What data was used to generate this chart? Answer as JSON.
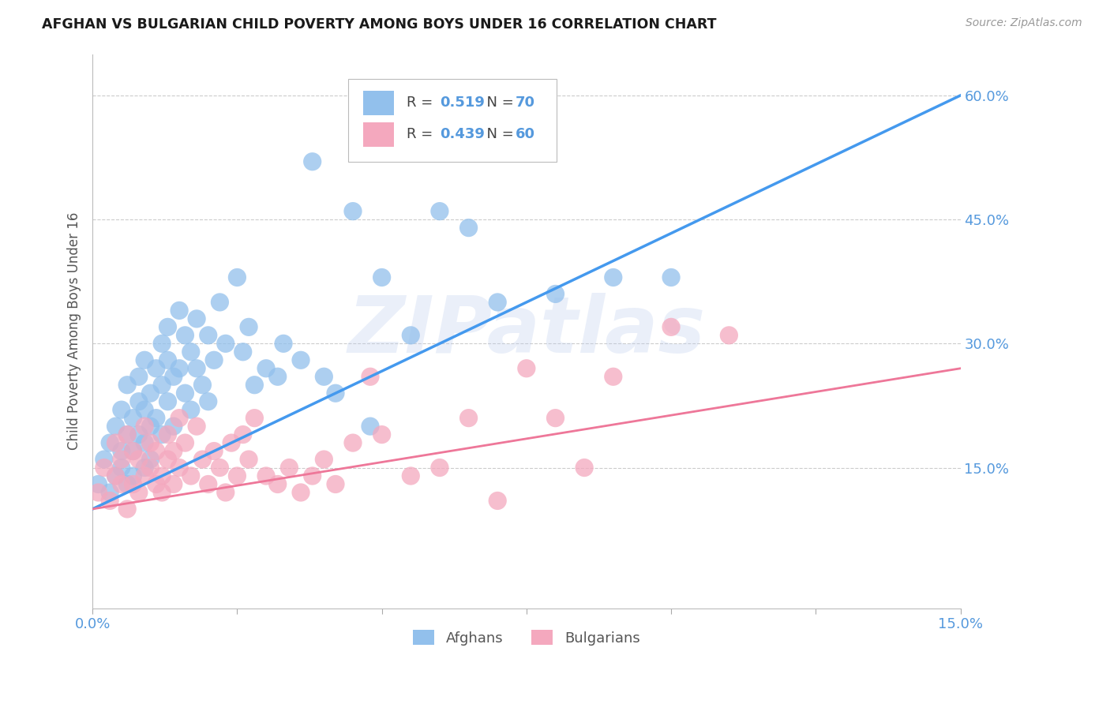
{
  "title": "AFGHAN VS BULGARIAN CHILD POVERTY AMONG BOYS UNDER 16 CORRELATION CHART",
  "source": "Source: ZipAtlas.com",
  "ylabel": "Child Poverty Among Boys Under 16",
  "xlim": [
    0.0,
    0.15
  ],
  "ylim": [
    -0.02,
    0.65
  ],
  "ytick_labels_right": [
    "60.0%",
    "45.0%",
    "30.0%",
    "15.0%"
  ],
  "ytick_vals_right": [
    0.6,
    0.45,
    0.3,
    0.15
  ],
  "afghan_R": "0.519",
  "afghan_N": "70",
  "bulgarian_R": "0.439",
  "bulgarian_N": "60",
  "afghan_color": "#92C0EC",
  "bulgarian_color": "#F4A8BE",
  "afghan_line_color": "#4499EE",
  "bulgarian_line_color": "#EE7799",
  "text_color": "#5599DD",
  "background_color": "#FFFFFF",
  "watermark": "ZIPatlas",
  "afghan_line_x0": 0.0,
  "afghan_line_y0": 0.1,
  "afghan_line_x1": 0.15,
  "afghan_line_y1": 0.6,
  "bulgarian_line_x0": 0.0,
  "bulgarian_line_y0": 0.1,
  "bulgarian_line_x1": 0.15,
  "bulgarian_line_y1": 0.27,
  "afghan_scatter_x": [
    0.001,
    0.002,
    0.003,
    0.003,
    0.004,
    0.004,
    0.005,
    0.005,
    0.005,
    0.006,
    0.006,
    0.006,
    0.007,
    0.007,
    0.007,
    0.008,
    0.008,
    0.008,
    0.009,
    0.009,
    0.009,
    0.009,
    0.01,
    0.01,
    0.01,
    0.011,
    0.011,
    0.012,
    0.012,
    0.012,
    0.013,
    0.013,
    0.013,
    0.014,
    0.014,
    0.015,
    0.015,
    0.016,
    0.016,
    0.017,
    0.017,
    0.018,
    0.018,
    0.019,
    0.02,
    0.02,
    0.021,
    0.022,
    0.023,
    0.025,
    0.026,
    0.027,
    0.028,
    0.03,
    0.032,
    0.033,
    0.036,
    0.038,
    0.04,
    0.042,
    0.045,
    0.048,
    0.05,
    0.055,
    0.06,
    0.065,
    0.07,
    0.08,
    0.09,
    0.1
  ],
  "afghan_scatter_y": [
    0.13,
    0.16,
    0.12,
    0.18,
    0.14,
    0.2,
    0.17,
    0.22,
    0.15,
    0.19,
    0.25,
    0.13,
    0.21,
    0.17,
    0.14,
    0.23,
    0.19,
    0.26,
    0.22,
    0.18,
    0.15,
    0.28,
    0.2,
    0.16,
    0.24,
    0.27,
    0.21,
    0.3,
    0.25,
    0.19,
    0.32,
    0.28,
    0.23,
    0.26,
    0.2,
    0.34,
    0.27,
    0.31,
    0.24,
    0.29,
    0.22,
    0.27,
    0.33,
    0.25,
    0.31,
    0.23,
    0.28,
    0.35,
    0.3,
    0.38,
    0.29,
    0.32,
    0.25,
    0.27,
    0.26,
    0.3,
    0.28,
    0.52,
    0.26,
    0.24,
    0.46,
    0.2,
    0.38,
    0.31,
    0.46,
    0.44,
    0.35,
    0.36,
    0.38,
    0.38
  ],
  "bulgarian_scatter_x": [
    0.001,
    0.002,
    0.003,
    0.004,
    0.004,
    0.005,
    0.005,
    0.006,
    0.006,
    0.007,
    0.007,
    0.008,
    0.008,
    0.009,
    0.009,
    0.01,
    0.01,
    0.011,
    0.011,
    0.012,
    0.012,
    0.013,
    0.013,
    0.014,
    0.014,
    0.015,
    0.015,
    0.016,
    0.017,
    0.018,
    0.019,
    0.02,
    0.021,
    0.022,
    0.023,
    0.024,
    0.025,
    0.026,
    0.027,
    0.028,
    0.03,
    0.032,
    0.034,
    0.036,
    0.038,
    0.04,
    0.042,
    0.045,
    0.048,
    0.05,
    0.055,
    0.06,
    0.065,
    0.07,
    0.075,
    0.08,
    0.085,
    0.09,
    0.1,
    0.11
  ],
  "bulgarian_scatter_y": [
    0.12,
    0.15,
    0.11,
    0.14,
    0.18,
    0.13,
    0.16,
    0.1,
    0.19,
    0.13,
    0.17,
    0.12,
    0.16,
    0.14,
    0.2,
    0.15,
    0.18,
    0.13,
    0.17,
    0.14,
    0.12,
    0.16,
    0.19,
    0.13,
    0.17,
    0.21,
    0.15,
    0.18,
    0.14,
    0.2,
    0.16,
    0.13,
    0.17,
    0.15,
    0.12,
    0.18,
    0.14,
    0.19,
    0.16,
    0.21,
    0.14,
    0.13,
    0.15,
    0.12,
    0.14,
    0.16,
    0.13,
    0.18,
    0.26,
    0.19,
    0.14,
    0.15,
    0.21,
    0.11,
    0.27,
    0.21,
    0.15,
    0.26,
    0.32,
    0.31
  ]
}
